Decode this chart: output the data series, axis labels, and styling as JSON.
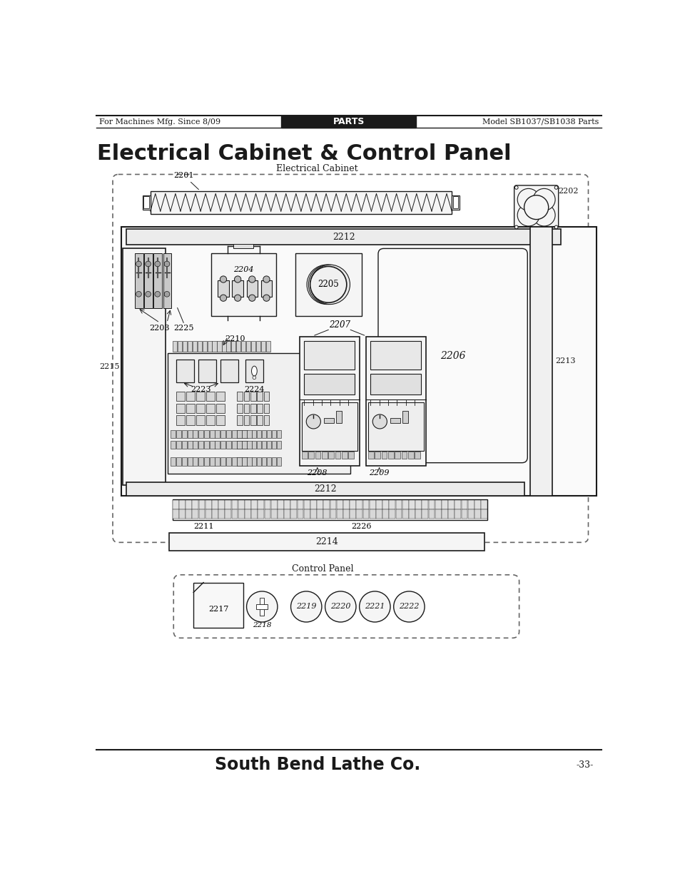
{
  "page_title": "Electrical Cabinet & Control Panel",
  "header_left": "For Machines Mfg. Since 8/09",
  "header_center": "PARTS",
  "header_right": "Model SB1037/SB1038 Parts",
  "footer_center": "South Bend Lathe Co.",
  "footer_right": "-33-",
  "ec_label": "Electrical Cabinet",
  "cp_label": "Control Panel",
  "bg_color": "#ffffff",
  "line_color": "#1a1a1a",
  "dashed_box_color": "#666666"
}
